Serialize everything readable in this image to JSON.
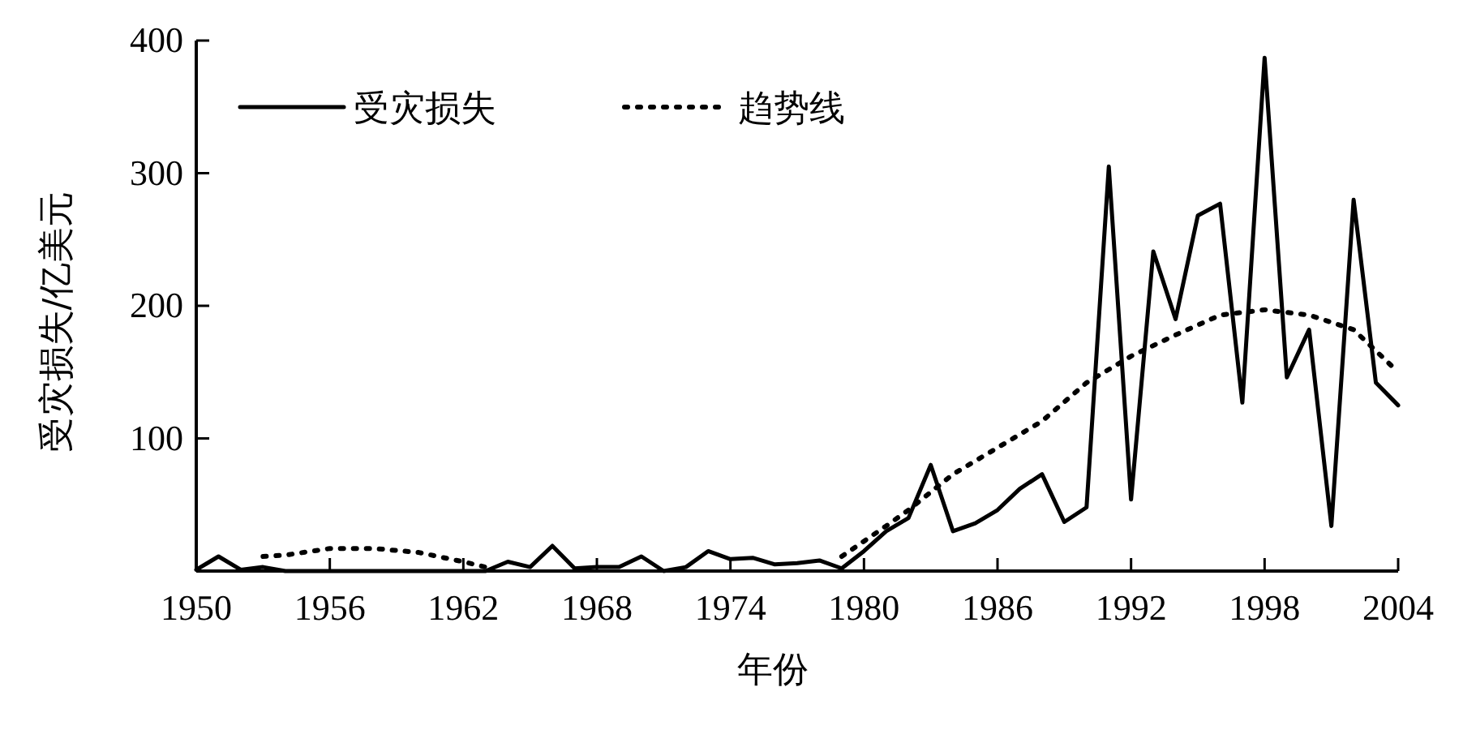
{
  "chart_data": {
    "type": "line",
    "xlabel": "年份",
    "ylabel": "受灾损失/亿美元",
    "xlim": [
      1950,
      2004
    ],
    "ylim": [
      0,
      400
    ],
    "xticks": [
      1950,
      1956,
      1962,
      1968,
      1974,
      1980,
      1986,
      1992,
      1998,
      2004
    ],
    "yticks": [
      100,
      200,
      300,
      400
    ],
    "legend": "top left",
    "grid": false,
    "series": [
      {
        "name": "受灾损失",
        "color": "#000000",
        "line_style": "solid",
        "x": [
          1950,
          1951,
          1952,
          1953,
          1954,
          1955,
          1956,
          1957,
          1958,
          1959,
          1960,
          1961,
          1962,
          1963,
          1964,
          1965,
          1966,
          1967,
          1968,
          1969,
          1970,
          1971,
          1972,
          1973,
          1974,
          1975,
          1976,
          1977,
          1978,
          1979,
          1980,
          1981,
          1982,
          1983,
          1984,
          1985,
          1986,
          1987,
          1988,
          1989,
          1990,
          1991,
          1992,
          1993,
          1994,
          1995,
          1996,
          1997,
          1998,
          1999,
          2000,
          2001,
          2002,
          2003,
          2004
        ],
        "values": [
          1,
          11,
          1,
          3,
          0,
          0,
          0,
          0,
          0,
          0,
          0,
          0,
          0,
          0,
          7,
          3,
          19,
          2,
          3,
          3,
          11,
          0,
          3,
          15,
          9,
          10,
          5,
          6,
          8,
          2,
          15,
          30,
          40,
          80,
          30,
          36,
          46,
          62,
          73,
          37,
          48,
          305,
          54,
          241,
          190,
          268,
          277,
          127,
          387,
          146,
          182,
          34,
          280,
          142,
          125
        ]
      },
      {
        "name": "趋势线",
        "color": "#000000",
        "line_style": "dotted",
        "x": [
          1953,
          1954,
          1956,
          1958,
          1960,
          1962,
          1963,
          1964,
          1978,
          1979,
          1981,
          1982,
          1984,
          1986,
          1988,
          1990,
          1992,
          1994,
          1996,
          1998,
          2000,
          2002,
          2004
        ],
        "values": [
          11,
          12,
          17,
          17,
          14,
          7,
          3,
          null,
          null,
          11,
          34,
          46,
          73,
          93,
          113,
          142,
          162,
          178,
          193,
          197,
          193,
          182,
          150
        ]
      }
    ]
  }
}
